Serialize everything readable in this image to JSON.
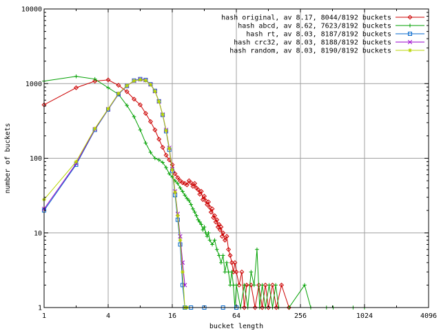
{
  "chart_data": {
    "type": "line",
    "title": "",
    "xlabel": "bucket length",
    "ylabel": "number of buckets",
    "x_scale": "log2",
    "y_scale": "log10",
    "xlim": [
      1,
      4096
    ],
    "ylim": [
      1,
      10000
    ],
    "x_ticks": [
      1,
      4,
      16,
      64,
      256,
      1024,
      4096
    ],
    "x_tick_labels": [
      "1",
      "4",
      "16",
      "64",
      "256",
      "1024",
      "4096"
    ],
    "y_ticks": [
      1,
      10,
      100,
      1000,
      10000
    ],
    "y_tick_labels": [
      "1",
      "10",
      "100",
      "1000",
      "10000"
    ],
    "grid": true,
    "legend_position": "top-right",
    "series": [
      {
        "name": "hash original, av 8.17, 8044/8192 buckets",
        "color": "#cc0000",
        "marker": "diamond",
        "points": [
          [
            1,
            520
          ],
          [
            2,
            880
          ],
          [
            3,
            1080
          ],
          [
            4,
            1120
          ],
          [
            5,
            950
          ],
          [
            6,
            780
          ],
          [
            7,
            620
          ],
          [
            8,
            520
          ],
          [
            9,
            400
          ],
          [
            10,
            310
          ],
          [
            11,
            240
          ],
          [
            12,
            180
          ],
          [
            13,
            140
          ],
          [
            14,
            110
          ],
          [
            15,
            95
          ],
          [
            16,
            82
          ],
          [
            17,
            62
          ],
          [
            18,
            55
          ],
          [
            19,
            50
          ],
          [
            20,
            47
          ],
          [
            21,
            46
          ],
          [
            22,
            44
          ],
          [
            23,
            50
          ],
          [
            24,
            47
          ],
          [
            25,
            42
          ],
          [
            26,
            46
          ],
          [
            27,
            40
          ],
          [
            28,
            38
          ],
          [
            29,
            33
          ],
          [
            30,
            36
          ],
          [
            31,
            28
          ],
          [
            32,
            31
          ],
          [
            33,
            27
          ],
          [
            34,
            24
          ],
          [
            35,
            26
          ],
          [
            36,
            22
          ],
          [
            37,
            19
          ],
          [
            38,
            21
          ],
          [
            39,
            16
          ],
          [
            40,
            17
          ],
          [
            41,
            14
          ],
          [
            42,
            15
          ],
          [
            43,
            12
          ],
          [
            44,
            13
          ],
          [
            45,
            11
          ],
          [
            46,
            12
          ],
          [
            47,
            9
          ],
          [
            48,
            10
          ],
          [
            50,
            8
          ],
          [
            52,
            9
          ],
          [
            54,
            6
          ],
          [
            56,
            5
          ],
          [
            58,
            4
          ],
          [
            60,
            3
          ],
          [
            62,
            4
          ],
          [
            64,
            3
          ],
          [
            68,
            2
          ],
          [
            72,
            3
          ],
          [
            76,
            1
          ],
          [
            80,
            2
          ],
          [
            88,
            2
          ],
          [
            96,
            1
          ],
          [
            104,
            2
          ],
          [
            112,
            1
          ],
          [
            120,
            2
          ],
          [
            128,
            1
          ],
          [
            140,
            2
          ],
          [
            152,
            1
          ],
          [
            170,
            2
          ],
          [
            200,
            1
          ]
        ]
      },
      {
        "name": "hash abcd, av 8.62, 7623/8192 buckets",
        "color": "#00a000",
        "marker": "plus",
        "points": [
          [
            1,
            1080
          ],
          [
            2,
            1250
          ],
          [
            3,
            1150
          ],
          [
            4,
            880
          ],
          [
            5,
            720
          ],
          [
            6,
            510
          ],
          [
            7,
            360
          ],
          [
            8,
            240
          ],
          [
            9,
            160
          ],
          [
            10,
            120
          ],
          [
            11,
            100
          ],
          [
            12,
            95
          ],
          [
            13,
            88
          ],
          [
            14,
            75
          ],
          [
            15,
            62
          ],
          [
            16,
            56
          ],
          [
            17,
            50
          ],
          [
            18,
            46
          ],
          [
            19,
            40
          ],
          [
            20,
            36
          ],
          [
            21,
            32
          ],
          [
            22,
            29
          ],
          [
            23,
            27
          ],
          [
            24,
            24
          ],
          [
            25,
            21
          ],
          [
            26,
            19
          ],
          [
            27,
            17
          ],
          [
            28,
            15
          ],
          [
            29,
            14
          ],
          [
            30,
            13
          ],
          [
            31,
            11
          ],
          [
            32,
            12
          ],
          [
            33,
            10
          ],
          [
            34,
            9
          ],
          [
            35,
            10
          ],
          [
            36,
            8
          ],
          [
            38,
            7
          ],
          [
            40,
            8
          ],
          [
            42,
            6
          ],
          [
            44,
            5
          ],
          [
            46,
            4
          ],
          [
            48,
            5
          ],
          [
            50,
            3
          ],
          [
            52,
            4
          ],
          [
            54,
            3
          ],
          [
            56,
            2
          ],
          [
            58,
            3
          ],
          [
            60,
            2
          ],
          [
            62,
            1
          ],
          [
            64,
            2
          ],
          [
            70,
            1
          ],
          [
            76,
            2
          ],
          [
            82,
            1
          ],
          [
            88,
            3
          ],
          [
            94,
            2
          ],
          [
            100,
            6
          ],
          [
            106,
            1
          ],
          [
            112,
            2
          ],
          [
            120,
            1
          ],
          [
            130,
            2
          ],
          [
            140,
            1
          ],
          [
            150,
            2
          ],
          [
            160,
            1
          ],
          [
            200,
            1
          ],
          [
            280,
            2
          ],
          [
            320,
            1
          ],
          [
            450,
            1
          ],
          [
            520,
            1
          ],
          [
            800,
            1
          ],
          [
            1024,
            1
          ]
        ]
      },
      {
        "name": "hash rt, av 8.03, 8187/8192 buckets",
        "color": "#0066cc",
        "marker": "square",
        "points": [
          [
            1,
            20
          ],
          [
            2,
            82
          ],
          [
            3,
            240
          ],
          [
            4,
            450
          ],
          [
            5,
            720
          ],
          [
            6,
            930
          ],
          [
            7,
            1100
          ],
          [
            8,
            1150
          ],
          [
            9,
            1120
          ],
          [
            10,
            980
          ],
          [
            11,
            800
          ],
          [
            12,
            580
          ],
          [
            13,
            380
          ],
          [
            14,
            230
          ],
          [
            15,
            130
          ],
          [
            16,
            68
          ],
          [
            17,
            32
          ],
          [
            18,
            15
          ],
          [
            19,
            7
          ],
          [
            20,
            2
          ],
          [
            21,
            1
          ],
          [
            24,
            1
          ],
          [
            32,
            1
          ],
          [
            48,
            1
          ],
          [
            64,
            1
          ]
        ]
      },
      {
        "name": "hash crc32, av 8.03, 8188/8192 buckets",
        "color": "#9900cc",
        "marker": "x",
        "points": [
          [
            1,
            21
          ],
          [
            2,
            85
          ],
          [
            3,
            245
          ],
          [
            4,
            455
          ],
          [
            5,
            730
          ],
          [
            6,
            935
          ],
          [
            7,
            1090
          ],
          [
            8,
            1140
          ],
          [
            9,
            1110
          ],
          [
            10,
            975
          ],
          [
            11,
            790
          ],
          [
            12,
            575
          ],
          [
            13,
            385
          ],
          [
            14,
            240
          ],
          [
            15,
            138
          ],
          [
            16,
            72
          ],
          [
            17,
            36
          ],
          [
            18,
            18
          ],
          [
            19,
            9
          ],
          [
            20,
            4
          ],
          [
            21,
            2
          ]
        ]
      },
      {
        "name": "hash random, av 8.03, 8190/8192 buckets",
        "color": "#b8d400",
        "marker": "star",
        "points": [
          [
            1,
            28
          ],
          [
            2,
            90
          ],
          [
            3,
            250
          ],
          [
            4,
            460
          ],
          [
            5,
            740
          ],
          [
            6,
            940
          ],
          [
            7,
            1090
          ],
          [
            8,
            1130
          ],
          [
            9,
            1100
          ],
          [
            10,
            970
          ],
          [
            11,
            790
          ],
          [
            12,
            575
          ],
          [
            13,
            385
          ],
          [
            14,
            235
          ],
          [
            15,
            135
          ],
          [
            16,
            70
          ],
          [
            17,
            35
          ],
          [
            18,
            17
          ],
          [
            19,
            8
          ],
          [
            20,
            3
          ],
          [
            21,
            1
          ],
          [
            22,
            1
          ]
        ]
      }
    ]
  }
}
